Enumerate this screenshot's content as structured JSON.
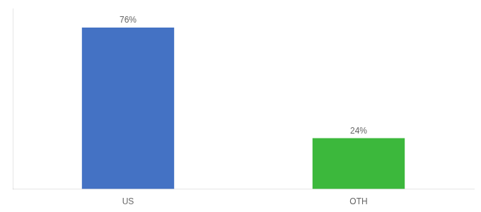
{
  "chart_data": {
    "type": "bar",
    "categories": [
      "US",
      "OTH"
    ],
    "values": [
      76,
      24
    ],
    "value_labels": [
      "76%",
      "24%"
    ],
    "colors": [
      "#4472C4",
      "#3CB83C"
    ],
    "ylim": [
      0,
      85
    ],
    "data_labels": true,
    "tick_labels": "x",
    "grid": false
  }
}
